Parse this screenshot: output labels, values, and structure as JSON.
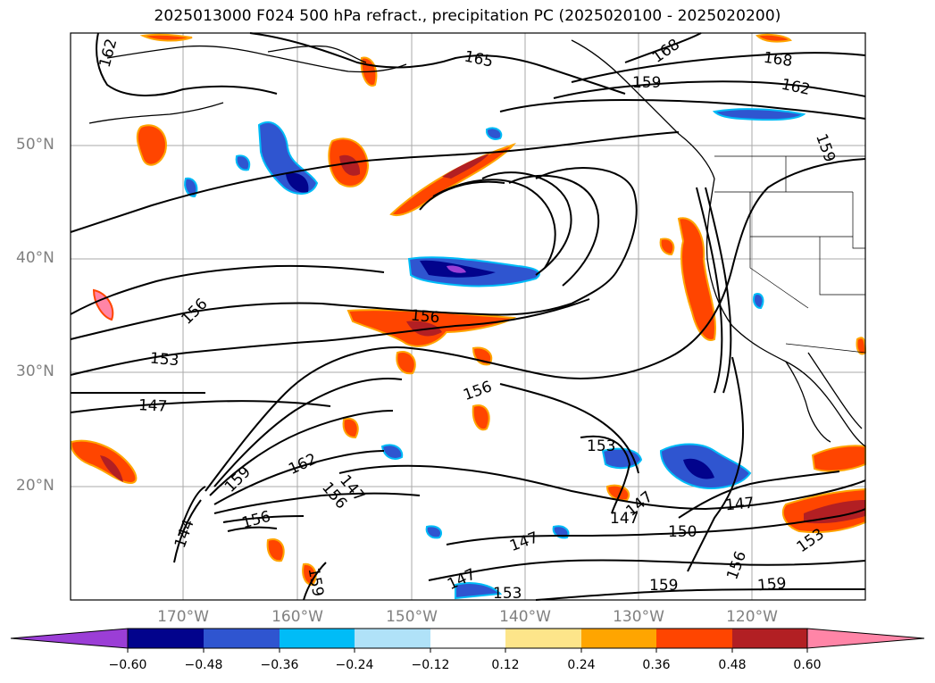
{
  "title": "2025013000 F024 500 hPa refract., precipitation PC (2025020100 - 2025020200)",
  "lat_ticks": [
    "50°N",
    "40°N",
    "30°N",
    "20°N"
  ],
  "lon_ticks": [
    "170°W",
    "160°W",
    "150°W",
    "140°W",
    "130°W",
    "120°W"
  ],
  "colorbar": {
    "tick_labels": [
      "−0.60",
      "−0.48",
      "−0.36",
      "−0.24",
      "−0.12",
      "0.12",
      "0.24",
      "0.36",
      "0.48",
      "0.60"
    ],
    "colors": [
      "#9b3ed6",
      "#02038c",
      "#2f55d0",
      "#00bcf7",
      "#b0e2f8",
      "#ffffff",
      "#fde58a",
      "#ffa500",
      "#ff4500",
      "#b21f23",
      "#ff85a7"
    ]
  },
  "contour_labels": [
    "162",
    "165",
    "168",
    "168",
    "162",
    "159",
    "159",
    "156",
    "153",
    "147",
    "156",
    "156",
    "153",
    "162",
    "159",
    "156",
    "147",
    "144",
    "156",
    "147",
    "147",
    "147",
    "150",
    "147",
    "153",
    "147",
    "153",
    "159",
    "156",
    "159",
    "159"
  ]
}
